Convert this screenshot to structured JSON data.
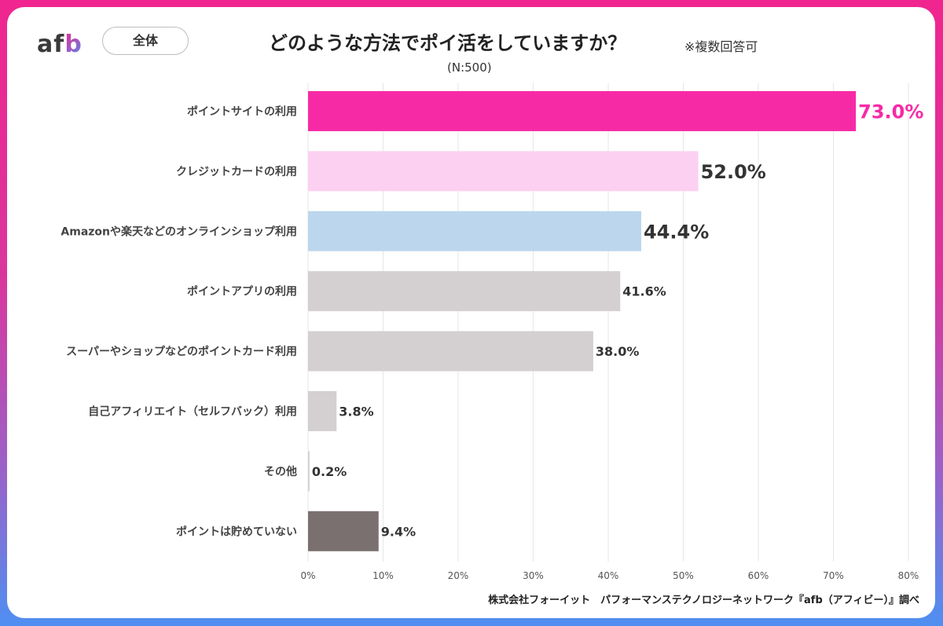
{
  "header": {
    "logo": {
      "a": "a",
      "f": "f",
      "b": "b"
    },
    "badge": "全体",
    "title": "どのような方法でポイ活をしていますか？",
    "note": "※複数回答可",
    "sample": "(N:500)"
  },
  "credit": "株式会社フォーイット　パフォーマンステクノロジーネットワーク『afb（アフィビー）』調べ",
  "colors": {
    "accent": "#f72aa6",
    "bars": [
      "#f72aa6",
      "#fcd0f0",
      "#bcd7ed",
      "#d4d0d1",
      "#d4d0d1",
      "#d4d0d1",
      "#d4d0d1",
      "#7a706f"
    ],
    "value_labels": [
      "#f72aa6",
      "#333333",
      "#333333",
      "#333333",
      "#333333",
      "#333333",
      "#333333",
      "#333333"
    ]
  },
  "chart_data": {
    "type": "bar",
    "orientation": "horizontal",
    "title": "どのような方法でポイ活をしていますか？",
    "categories": [
      "ポイントサイトの利用",
      "クレジットカードの利用",
      "Amazonや楽天などのオンラインショップ利用",
      "ポイントアプリの利用",
      "スーパーやショップなどのポイントカード利用",
      "自己アフィリエイト（セルフバック）利用",
      "その他",
      "ポイントは貯めていない"
    ],
    "values": [
      73.0,
      52.0,
      44.4,
      41.6,
      38.0,
      3.8,
      0.2,
      9.4
    ],
    "value_labels": [
      "73.0%",
      "52.0%",
      "44.4%",
      "41.6%",
      "38.0%",
      "3.8%",
      "0.2%",
      "9.4%"
    ],
    "xlim": [
      0,
      80
    ],
    "xticks": [
      "0%",
      "10%",
      "20%",
      "30%",
      "40%",
      "50%",
      "60%",
      "70%",
      "80%"
    ],
    "grid": true
  }
}
